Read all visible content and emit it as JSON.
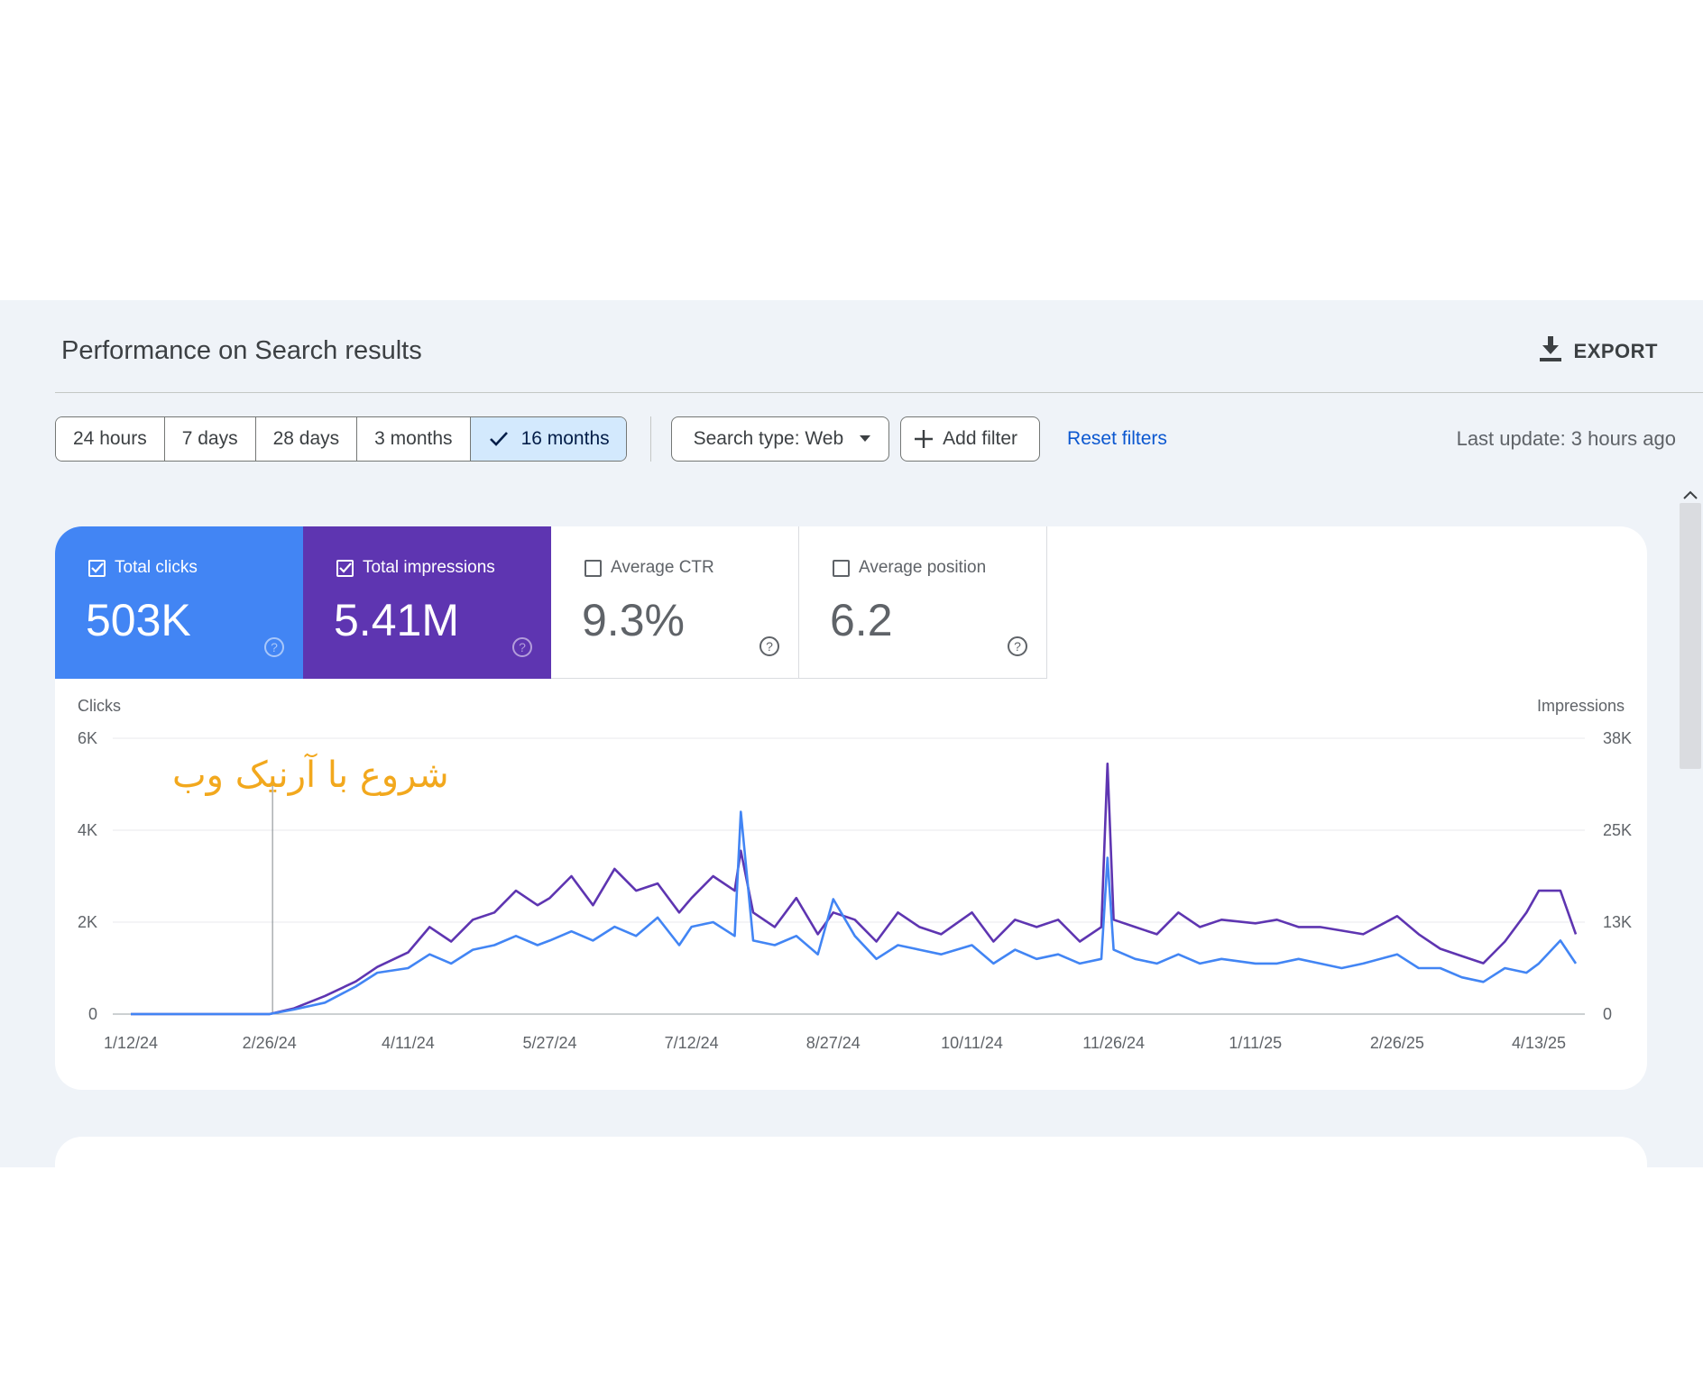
{
  "header": {
    "title": "Performance on Search results",
    "export_label": "EXPORT"
  },
  "date_range": {
    "options": [
      "24 hours",
      "7 days",
      "28 days",
      "3 months",
      "16 months"
    ],
    "selected": "16 months"
  },
  "filters": {
    "search_type": "Search type: Web",
    "add_filter": "Add filter",
    "reset": "Reset filters"
  },
  "last_update": "Last update: 3 hours ago",
  "metrics": [
    {
      "label": "Total clicks",
      "value": "503K",
      "checked": true,
      "color": "#4285f4"
    },
    {
      "label": "Total impressions",
      "value": "5.41M",
      "checked": true,
      "color": "#5e35b1"
    },
    {
      "label": "Average CTR",
      "value": "9.3%",
      "checked": false
    },
    {
      "label": "Average position",
      "value": "6.2",
      "checked": false
    }
  ],
  "chart_data": {
    "type": "line",
    "left_axis_title": "Clicks",
    "right_axis_title": "Impressions",
    "left_ticks": [
      "6K",
      "4K",
      "2K",
      "0"
    ],
    "right_ticks": [
      "38K",
      "25K",
      "13K",
      "0"
    ],
    "x_tick_labels": [
      "1/12/24",
      "2/26/24",
      "4/11/24",
      "5/27/24",
      "7/12/24",
      "8/27/24",
      "10/11/24",
      "11/26/24",
      "1/11/25",
      "2/26/25",
      "4/13/25"
    ],
    "ylim_clicks": [
      0,
      6000
    ],
    "ylim_impressions": [
      0,
      38000
    ],
    "grid": true,
    "annotation": {
      "text": "شروع با آرنیک وب",
      "date": "2/27/24",
      "color": "#f2a81d"
    },
    "series": [
      {
        "name": "Clicks",
        "axis": "left",
        "color": "#4285f4",
        "x": [
          "1/12/24",
          "2/1/24",
          "2/26/24",
          "3/5/24",
          "3/15/24",
          "3/25/24",
          "4/1/24",
          "4/11/24",
          "4/18/24",
          "4/25/24",
          "5/2/24",
          "5/9/24",
          "5/16/24",
          "5/23/24",
          "5/27/24",
          "6/3/24",
          "6/10/24",
          "6/17/24",
          "6/24/24",
          "7/1/24",
          "7/8/24",
          "7/12/24",
          "7/19/24",
          "7/26/24",
          "7/28/24",
          "8/1/24",
          "8/8/24",
          "8/15/24",
          "8/22/24",
          "8/27/24",
          "9/3/24",
          "9/10/24",
          "9/17/24",
          "9/24/24",
          "10/1/24",
          "10/11/24",
          "10/18/24",
          "10/25/24",
          "11/1/24",
          "11/8/24",
          "11/15/24",
          "11/22/24",
          "11/24/24",
          "11/26/24",
          "12/3/24",
          "12/10/24",
          "12/17/24",
          "12/24/24",
          "12/31/24",
          "1/11/25",
          "1/18/25",
          "1/25/25",
          "2/1/25",
          "2/8/25",
          "2/15/25",
          "2/26/25",
          "3/5/25",
          "3/12/25",
          "3/19/25",
          "3/26/25",
          "4/2/25",
          "4/9/25",
          "4/13/25",
          "4/20/25",
          "4/25/25"
        ],
        "y": [
          0,
          0,
          0,
          100,
          250,
          600,
          900,
          1000,
          1300,
          1100,
          1400,
          1500,
          1700,
          1500,
          1600,
          1800,
          1600,
          1900,
          1700,
          2100,
          1500,
          1900,
          2000,
          1700,
          4400,
          1600,
          1500,
          1700,
          1300,
          2500,
          1700,
          1200,
          1500,
          1400,
          1300,
          1500,
          1100,
          1400,
          1200,
          1300,
          1100,
          1200,
          3400,
          1400,
          1200,
          1100,
          1300,
          1100,
          1200,
          1100,
          1100,
          1200,
          1100,
          1000,
          1100,
          1300,
          1000,
          1000,
          800,
          700,
          1000,
          900,
          1100,
          1600,
          1100
        ]
      },
      {
        "name": "Impressions",
        "axis": "right",
        "color": "#5e35b1",
        "x": [
          "1/12/24",
          "2/1/24",
          "2/26/24",
          "3/5/24",
          "3/15/24",
          "3/25/24",
          "4/1/24",
          "4/11/24",
          "4/18/24",
          "4/25/24",
          "5/2/24",
          "5/9/24",
          "5/16/24",
          "5/23/24",
          "5/27/24",
          "6/3/24",
          "6/10/24",
          "6/17/24",
          "6/24/24",
          "7/1/24",
          "7/8/24",
          "7/12/24",
          "7/19/24",
          "7/26/24",
          "7/28/24",
          "8/1/24",
          "8/8/24",
          "8/15/24",
          "8/22/24",
          "8/27/24",
          "9/3/24",
          "9/10/24",
          "9/17/24",
          "9/24/24",
          "10/1/24",
          "10/11/24",
          "10/18/24",
          "10/25/24",
          "11/1/24",
          "11/8/24",
          "11/15/24",
          "11/22/24",
          "11/24/24",
          "11/26/24",
          "12/3/24",
          "12/10/24",
          "12/17/24",
          "12/24/24",
          "12/31/24",
          "1/11/25",
          "1/18/25",
          "1/25/25",
          "2/1/25",
          "2/8/25",
          "2/15/25",
          "2/26/25",
          "3/5/25",
          "3/12/25",
          "3/19/25",
          "3/26/25",
          "4/2/25",
          "4/9/25",
          "4/13/25",
          "4/20/25",
          "4/25/25"
        ],
        "y": [
          0,
          0,
          0,
          800,
          2500,
          4500,
          6500,
          8500,
          12000,
          10000,
          13000,
          14000,
          17000,
          15000,
          16000,
          19000,
          15000,
          20000,
          17000,
          18000,
          14000,
          16000,
          19000,
          17000,
          22500,
          14000,
          12000,
          16000,
          11000,
          14000,
          13000,
          10000,
          14000,
          12000,
          11000,
          14000,
          10000,
          13000,
          12000,
          13000,
          10000,
          12000,
          34500,
          13000,
          12000,
          11000,
          14000,
          12000,
          13000,
          12500,
          13000,
          12000,
          12000,
          11500,
          11000,
          13500,
          11000,
          9000,
          8000,
          7000,
          10000,
          14000,
          17000,
          17000,
          11000
        ]
      }
    ]
  }
}
